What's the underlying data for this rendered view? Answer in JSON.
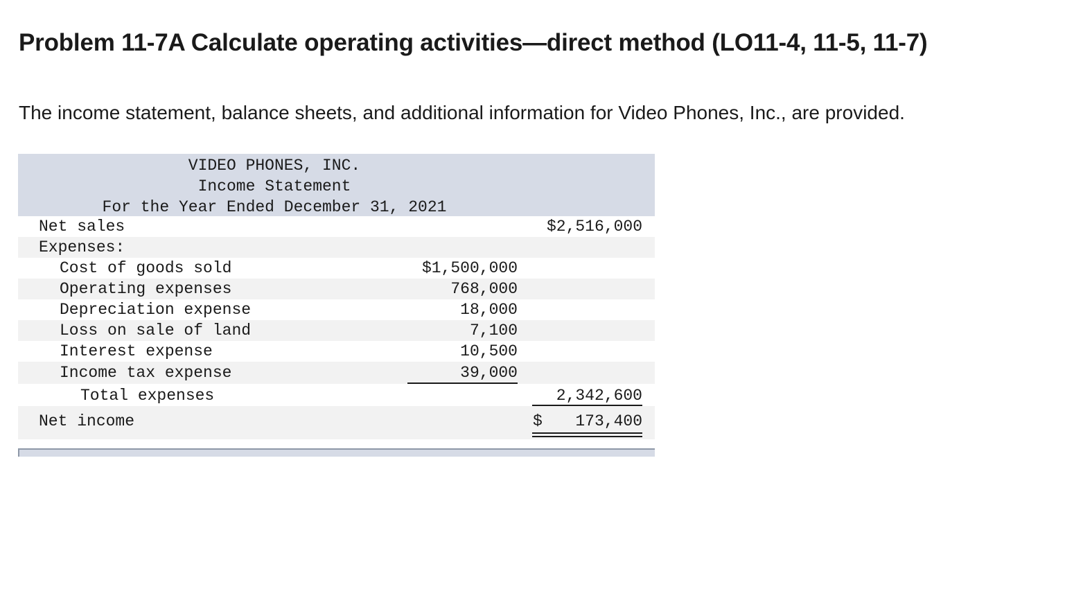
{
  "problem": {
    "title": "Problem 11-7A Calculate operating activities—direct method (LO11-4, 11-5, 11-7)",
    "intro": "The income statement, balance sheets, and additional information for Video Phones, Inc., are provided."
  },
  "statement": {
    "company": "VIDEO PHONES, INC.",
    "name": "Income Statement",
    "period": "For the Year Ended December 31, 2021",
    "net_sales": {
      "label": "Net sales",
      "amount": "$2,516,000"
    },
    "expenses_label": "Expenses:",
    "expenses": [
      {
        "label": "Cost of goods sold",
        "amount": "$1,500,000"
      },
      {
        "label": "Operating expenses",
        "amount": "768,000"
      },
      {
        "label": "Depreciation expense",
        "amount": "18,000"
      },
      {
        "label": "Loss on sale of land",
        "amount": "7,100"
      },
      {
        "label": "Interest expense",
        "amount": "10,500"
      },
      {
        "label": "Income tax expense",
        "amount": "39,000"
      }
    ],
    "total_expenses": {
      "label": "Total expenses",
      "amount": "2,342,600"
    },
    "net_income": {
      "label": "Net income",
      "currency": "$",
      "amount": "173,400"
    }
  },
  "colors": {
    "header_bg": "#d6dbe6",
    "stripe_bg": "#f2f2f2",
    "text": "#1a1a1a"
  }
}
